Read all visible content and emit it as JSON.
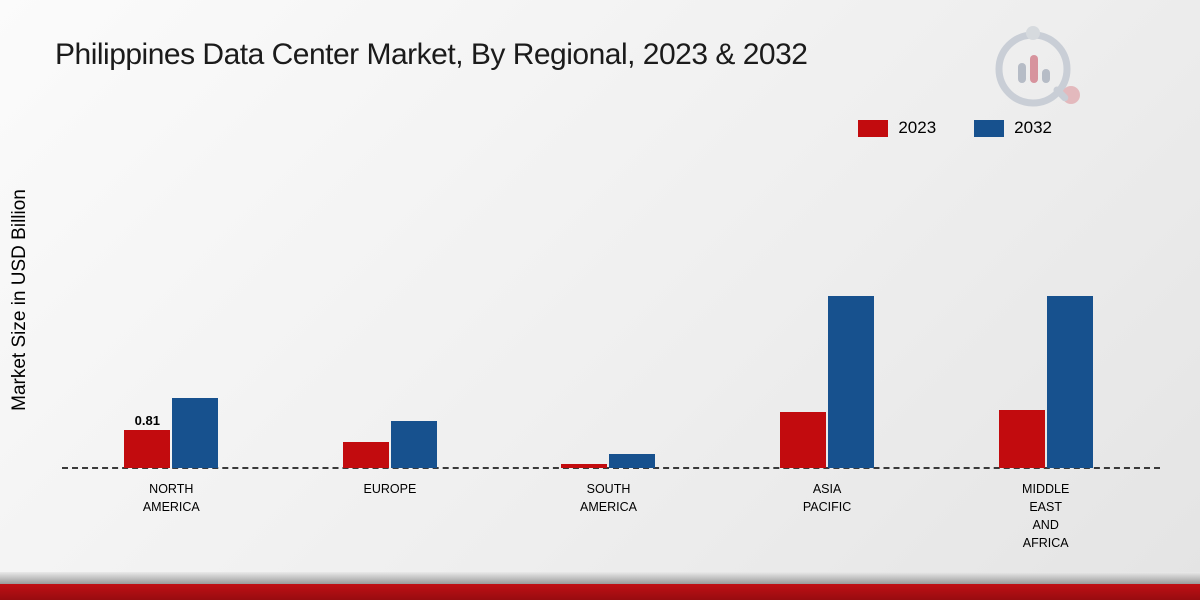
{
  "title": "Philippines Data Center Market, By Regional, 2023 & 2032",
  "ylabel": "Market Size in USD Billion",
  "legend": [
    {
      "label": "2023",
      "color": "#c20b0e"
    },
    {
      "label": "2032",
      "color": "#17518e"
    }
  ],
  "colors": {
    "series_2023": "#c20b0e",
    "series_2032": "#17518e",
    "footer_ribbon": "#b00e13"
  },
  "logo_name": "mrfr-chart-logo",
  "chart_data": {
    "type": "bar",
    "title": "Philippines Data Center Market, By Regional, 2023 & 2032",
    "xlabel": "",
    "ylabel": "Market Size in USD Billion",
    "ylim": [
      0,
      4.3
    ],
    "grid": false,
    "legend_position": "top-right",
    "baseline_style": "dashed",
    "categories": [
      "NORTH AMERICA",
      "EUROPE",
      "SOUTH AMERICA",
      "ASIA PACIFIC",
      "MIDDLE EAST AND AFRICA"
    ],
    "series": [
      {
        "name": "2023",
        "color": "#c20b0e",
        "values": [
          0.81,
          0.55,
          0.08,
          1.2,
          1.25
        ],
        "labels": [
          "0.81",
          "",
          "",
          "",
          ""
        ]
      },
      {
        "name": "2032",
        "color": "#17518e",
        "values": [
          1.5,
          1.0,
          0.3,
          3.7,
          3.7
        ],
        "labels": [
          "",
          "",
          "",
          "",
          ""
        ]
      }
    ]
  }
}
